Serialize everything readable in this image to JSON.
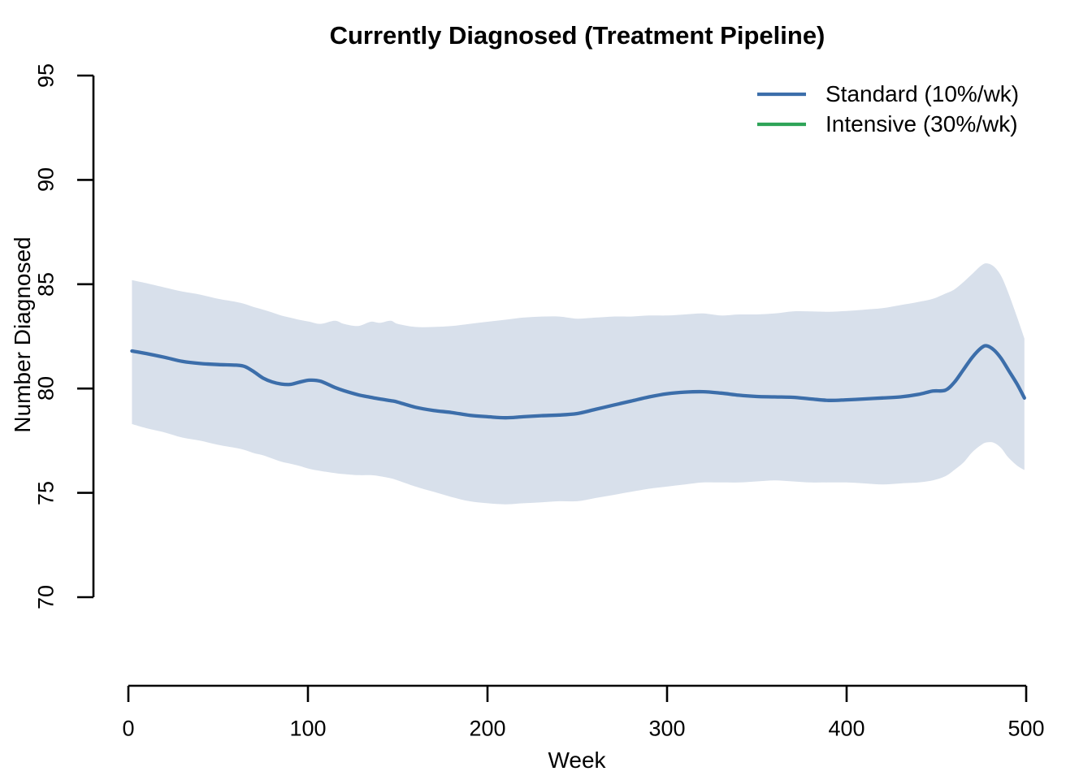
{
  "page": {
    "background": "#ffffff",
    "text_color": "#000000"
  },
  "chart_data": {
    "type": "line",
    "title": "Currently Diagnosed (Treatment Pipeline)",
    "xlabel": "Week",
    "ylabel": "Number Diagnosed",
    "xlim": [
      0,
      500
    ],
    "ylim": [
      70,
      95
    ],
    "x_ticks": [
      0,
      100,
      200,
      300,
      400,
      500
    ],
    "y_ticks": [
      70,
      75,
      80,
      85,
      90,
      95
    ],
    "grid": false,
    "axis_color": "#000000",
    "legend_position": "top-right",
    "legend": [
      {
        "label": "Standard (10%/wk)",
        "color": "#3C6EAA"
      },
      {
        "label": "Intensive (30%/wk)",
        "color": "#2FA458"
      }
    ],
    "series": [
      {
        "name": "Standard (10%/wk)",
        "color": "#3C6EAA",
        "line_width": 4.3,
        "x": [
          2,
          10,
          20,
          30,
          40,
          50,
          60,
          65,
          70,
          75,
          80,
          85,
          90,
          95,
          101,
          107,
          115,
          120,
          128,
          135,
          140,
          146,
          150,
          160,
          170,
          180,
          190,
          200,
          210,
          220,
          230,
          240,
          250,
          260,
          270,
          280,
          290,
          300,
          310,
          320,
          330,
          340,
          350,
          360,
          370,
          380,
          390,
          400,
          410,
          420,
          430,
          440,
          448,
          455,
          460,
          465,
          470,
          475,
          478,
          482,
          486,
          490,
          495,
          499
        ],
        "y": [
          81.8,
          81.68,
          81.5,
          81.3,
          81.2,
          81.15,
          81.12,
          81.05,
          80.8,
          80.5,
          80.32,
          80.22,
          80.2,
          80.3,
          80.4,
          80.35,
          80.05,
          79.9,
          79.7,
          79.58,
          79.5,
          79.42,
          79.35,
          79.1,
          78.95,
          78.85,
          78.72,
          78.65,
          78.6,
          78.65,
          78.7,
          78.73,
          78.8,
          79.0,
          79.2,
          79.4,
          79.6,
          79.75,
          79.83,
          79.85,
          79.78,
          79.68,
          79.62,
          79.6,
          79.58,
          79.5,
          79.43,
          79.46,
          79.5,
          79.55,
          79.6,
          79.72,
          79.88,
          79.92,
          80.3,
          80.9,
          81.5,
          81.95,
          82.05,
          81.85,
          81.45,
          80.9,
          80.2,
          79.55
        ],
        "band": {
          "color": "#D8E0EB",
          "upper": [
            85.2,
            85.05,
            84.85,
            84.65,
            84.5,
            84.3,
            84.15,
            84.05,
            83.9,
            83.78,
            83.65,
            83.5,
            83.4,
            83.3,
            83.2,
            83.1,
            83.25,
            83.1,
            83.0,
            83.2,
            83.15,
            83.25,
            83.1,
            82.95,
            82.95,
            83.0,
            83.1,
            83.2,
            83.3,
            83.4,
            83.45,
            83.45,
            83.35,
            83.4,
            83.45,
            83.45,
            83.5,
            83.5,
            83.55,
            83.6,
            83.5,
            83.55,
            83.55,
            83.6,
            83.7,
            83.7,
            83.68,
            83.72,
            83.78,
            83.85,
            84.0,
            84.15,
            84.3,
            84.55,
            84.75,
            85.1,
            85.5,
            85.9,
            86.0,
            85.85,
            85.4,
            84.6,
            83.4,
            82.4
          ],
          "lower": [
            78.3,
            78.1,
            77.9,
            77.65,
            77.5,
            77.3,
            77.15,
            77.05,
            76.9,
            76.8,
            76.65,
            76.5,
            76.4,
            76.3,
            76.15,
            76.05,
            75.95,
            75.9,
            75.85,
            75.85,
            75.8,
            75.7,
            75.6,
            75.3,
            75.05,
            74.8,
            74.6,
            74.5,
            74.45,
            74.5,
            74.55,
            74.6,
            74.6,
            74.75,
            74.9,
            75.05,
            75.2,
            75.3,
            75.4,
            75.5,
            75.5,
            75.5,
            75.55,
            75.6,
            75.55,
            75.5,
            75.5,
            75.5,
            75.45,
            75.4,
            75.45,
            75.5,
            75.6,
            75.8,
            76.1,
            76.45,
            76.95,
            77.3,
            77.42,
            77.4,
            77.15,
            76.7,
            76.3,
            76.1
          ]
        }
      },
      {
        "name": "Intensive (30%/wk)",
        "color": "#2FA458",
        "line_width": 4.3,
        "visible_in_plot": false,
        "x": [],
        "y": []
      }
    ]
  }
}
